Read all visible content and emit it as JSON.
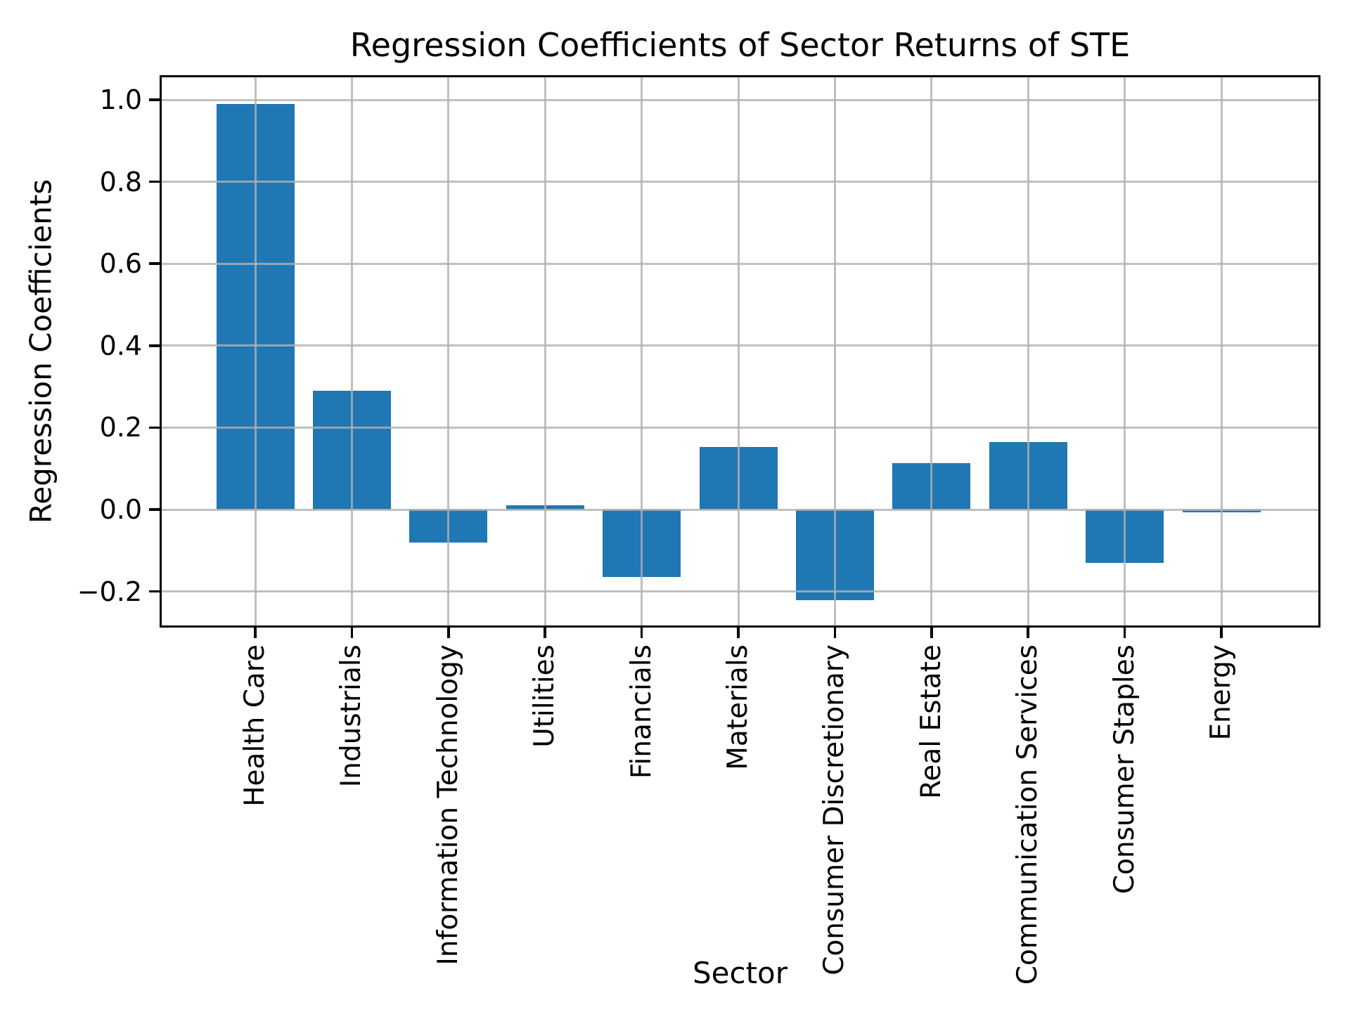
{
  "chart_data": {
    "type": "bar",
    "title": "Regression Coefficients of Sector Returns of STE",
    "xlabel": "Sector",
    "ylabel": "Regression Coefficients",
    "categories": [
      "Health Care",
      "Industrials",
      "Information Technology",
      "Utilities",
      "Financials",
      "Materials",
      "Consumer Discretionary",
      "Real Estate",
      "Communication Services",
      "Consumer Staples",
      "Energy"
    ],
    "values": [
      0.99,
      0.29,
      -0.08,
      0.01,
      -0.165,
      0.153,
      -0.222,
      0.113,
      0.164,
      -0.13,
      -0.007
    ],
    "yticks": [
      1.0,
      0.8,
      0.6,
      0.4,
      0.2,
      0.0,
      -0.2
    ],
    "ytick_labels": [
      "1.0",
      "0.8",
      "0.6",
      "0.4",
      "0.2",
      "0.0",
      "−0.2"
    ],
    "ylim": [
      -0.283,
      1.055
    ],
    "grid": true,
    "legend_position": "none",
    "bar_color": "#1f77b4",
    "grid_color": "#b0b0b0",
    "axis_color": "#000000"
  }
}
